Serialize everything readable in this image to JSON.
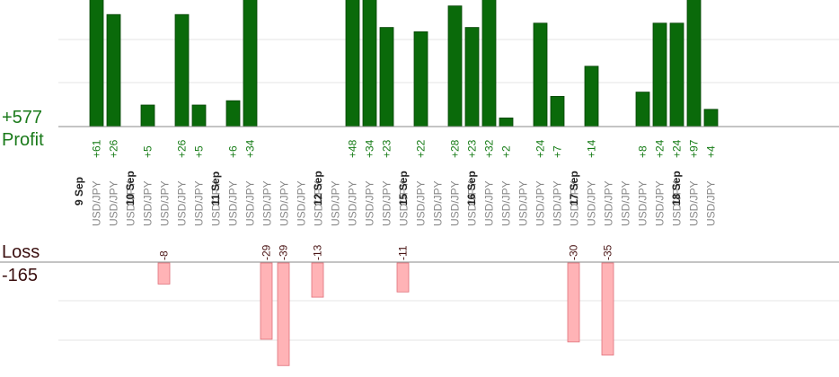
{
  "profit_panel": {
    "total": "+577",
    "label": "Profit",
    "color": "#1a7a1a"
  },
  "loss_panel": {
    "total": "-165",
    "label": "Loss",
    "color": "#3a0f0f"
  },
  "colors": {
    "profit_bar": "#0a6a0a",
    "profit_bar_edge": "#064406",
    "profit_value": "#137a13",
    "loss_bar": "#ffb3b6",
    "loss_bar_edge": "#e0707a",
    "loss_value": "#4a1515",
    "date_text": "#222222",
    "pair_text": "#888888",
    "axis": "#888888",
    "grid": "#e6e6e6"
  },
  "chart_data": {
    "type": "bar",
    "grid": true,
    "profit_axis_cap": 30,
    "loss_axis_cap": 40,
    "dates": [
      {
        "label": "9 Sep",
        "col": 0
      },
      {
        "label": "10 Sep",
        "col": 3
      },
      {
        "label": "11 Sep",
        "col": 8
      },
      {
        "label": "12 Sep",
        "col": 14
      },
      {
        "label": "15 Sep",
        "col": 19
      },
      {
        "label": "16 Sep",
        "col": 23
      },
      {
        "label": "17 Sep",
        "col": 29
      },
      {
        "label": "18 Sep",
        "col": 35
      }
    ],
    "trades": [
      {
        "pair": "USD/JPY",
        "value": 61
      },
      {
        "pair": "USD/JPY",
        "value": 26
      },
      {
        "pair": "USD/JPY",
        "value": 0
      },
      {
        "pair": "USD/JPY",
        "value": 5
      },
      {
        "pair": "USD/JPY",
        "value": -8
      },
      {
        "pair": "USD/JPY",
        "value": 26
      },
      {
        "pair": "USD/JPY",
        "value": 5
      },
      {
        "pair": "USD/JPY",
        "value": 0
      },
      {
        "pair": "USD/JPY",
        "value": 6
      },
      {
        "pair": "USD/JPY",
        "value": 34
      },
      {
        "pair": "USD/JPY",
        "value": -29
      },
      {
        "pair": "USD/JPY",
        "value": -39
      },
      {
        "pair": "USD/JPY",
        "value": 0
      },
      {
        "pair": "USD/JPY",
        "value": -13
      },
      {
        "pair": "USD/JPY",
        "value": 0
      },
      {
        "pair": "USD/JPY",
        "value": 48
      },
      {
        "pair": "USD/JPY",
        "value": 34
      },
      {
        "pair": "USD/JPY",
        "value": 23
      },
      {
        "pair": "USD/JPY",
        "value": -11
      },
      {
        "pair": "USD/JPY",
        "value": 22
      },
      {
        "pair": "USD/JPY",
        "value": 0
      },
      {
        "pair": "USD/JPY",
        "value": 28
      },
      {
        "pair": "USD/JPY",
        "value": 23
      },
      {
        "pair": "USD/JPY",
        "value": 32
      },
      {
        "pair": "USD/JPY",
        "value": 2
      },
      {
        "pair": "USD/JPY",
        "value": 0
      },
      {
        "pair": "USD/JPY",
        "value": 24
      },
      {
        "pair": "USD/JPY",
        "value": 7
      },
      {
        "pair": "USD/JPY",
        "value": -30
      },
      {
        "pair": "USD/JPY",
        "value": 14
      },
      {
        "pair": "USD/JPY",
        "value": -35
      },
      {
        "pair": "USD/JPY",
        "value": 0
      },
      {
        "pair": "USD/JPY",
        "value": 8
      },
      {
        "pair": "USD/JPY",
        "value": 24
      },
      {
        "pair": "USD/JPY",
        "value": 24
      },
      {
        "pair": "USD/JPY",
        "value": 97
      },
      {
        "pair": "USD/JPY",
        "value": 4
      }
    ]
  }
}
